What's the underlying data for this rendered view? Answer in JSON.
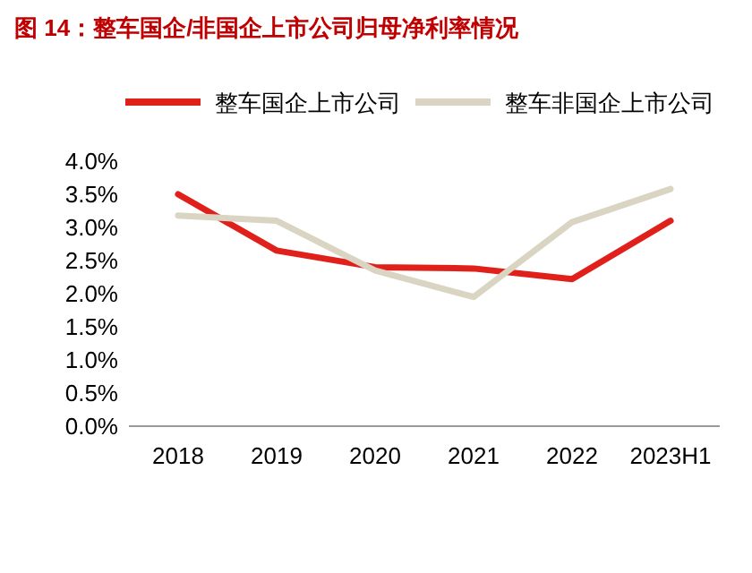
{
  "chart_data": {
    "type": "line",
    "title": "图 14：整车国企/非国企上市公司归母净利率情况",
    "categories": [
      "2018",
      "2019",
      "2020",
      "2021",
      "2022",
      "2023H1"
    ],
    "series": [
      {
        "name": "整车国企上市公司",
        "color": "#e0201b",
        "values": [
          3.5,
          2.65,
          2.4,
          2.38,
          2.22,
          3.1
        ]
      },
      {
        "name": "整车非国企上市公司",
        "color": "#dad4c2",
        "values": [
          3.18,
          3.1,
          2.35,
          1.95,
          3.08,
          3.58
        ]
      }
    ],
    "ylim": [
      0,
      4
    ],
    "yticks": [
      {
        "value": 0,
        "label": "0.0%"
      },
      {
        "value": 0.5,
        "label": "0.5%"
      },
      {
        "value": 1,
        "label": "1.0%"
      },
      {
        "value": 1.5,
        "label": "1.5%"
      },
      {
        "value": 2,
        "label": "2.0%"
      },
      {
        "value": 2.5,
        "label": "2.5%"
      },
      {
        "value": 3,
        "label": "3.0%"
      },
      {
        "value": 3.5,
        "label": "3.5%"
      },
      {
        "value": 4,
        "label": "4.0%"
      }
    ],
    "legend": "top"
  }
}
